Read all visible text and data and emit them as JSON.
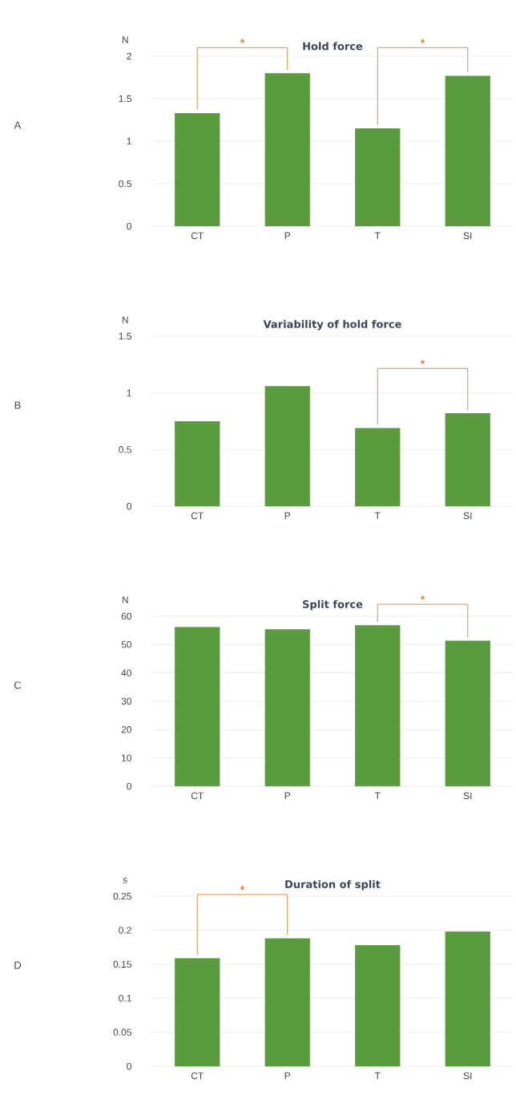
{
  "chart_data": [
    {
      "type": "bar",
      "title": "Hold force",
      "ylabel": "N",
      "categories": [
        "CT",
        "P",
        "T",
        "SI"
      ],
      "values": [
        1.33,
        1.8,
        1.15,
        1.77
      ],
      "color": "#5b9b3f",
      "ylim": [
        0,
        2
      ],
      "yticks": [
        0,
        0.5,
        1,
        1.5,
        2
      ],
      "grid": "y",
      "annotations": [
        "A",
        "*",
        "*"
      ]
    },
    {
      "type": "bar",
      "title": "Variability of hold force",
      "ylabel": "N",
      "categories": [
        "CT",
        "P",
        "T",
        "SI"
      ],
      "values": [
        0.75,
        1.06,
        0.69,
        0.82
      ],
      "color": "#5b9b3f",
      "ylim": [
        0,
        1.5
      ],
      "yticks": [
        0,
        0.5,
        1,
        1.5
      ],
      "grid": "y",
      "annotations": [
        "B",
        "*"
      ]
    },
    {
      "type": "bar",
      "title": "Split force",
      "ylabel": "N",
      "categories": [
        "CT",
        "P",
        "T",
        "SI"
      ],
      "values": [
        56.2,
        55.4,
        56.8,
        51.4
      ],
      "color": "#5b9b3f",
      "ylim": [
        0,
        60
      ],
      "yticks": [
        0,
        10,
        20,
        30,
        40,
        50,
        60
      ],
      "grid": "y",
      "annotations": [
        "C",
        "*"
      ]
    },
    {
      "type": "bar",
      "title": "Duration of split",
      "ylabel": "s",
      "categories": [
        "CT",
        "P",
        "T",
        "SI"
      ],
      "values": [
        0.159,
        0.188,
        0.178,
        0.198
      ],
      "color": "#5b9b3f",
      "ylim": [
        0,
        0.25
      ],
      "yticks": [
        0,
        0.05,
        0.1,
        0.15,
        0.2,
        0.25
      ],
      "grid": "y",
      "annotations": [
        "D",
        "*"
      ]
    }
  ]
}
